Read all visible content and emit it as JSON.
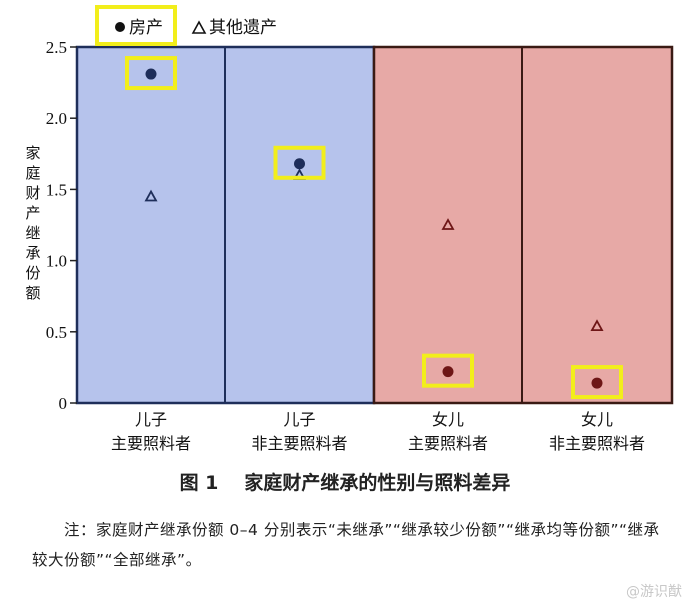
{
  "chart_data": {
    "type": "scatter",
    "ylabel": "家庭财产继承份额",
    "ylim": [
      0,
      2.5
    ],
    "yticks": [
      "0",
      "0.5",
      "1.0",
      "1.5",
      "2.0",
      "2.5"
    ],
    "categories": [
      {
        "line1": "儿子",
        "line2": "主要照料者"
      },
      {
        "line1": "儿子",
        "line2": "非主要照料者"
      },
      {
        "line1": "女儿",
        "line2": "主要照料者"
      },
      {
        "line1": "女儿",
        "line2": "非主要照料者"
      }
    ],
    "series": [
      {
        "name": "房产",
        "marker": "circle",
        "values": [
          2.31,
          1.68,
          0.22,
          0.14
        ]
      },
      {
        "name": "其他遗产",
        "marker": "triangle",
        "values": [
          1.45,
          1.6,
          1.25,
          0.54
        ]
      }
    ],
    "highlighted": {
      "series": "房产",
      "box_color": "#f2ee1b"
    },
    "legend_position": "top-left",
    "colors": {
      "son_panel": "#b6c3ec",
      "son_border": "#1e2e5a",
      "son_marker": "#1e2e5a",
      "daughter_panel": "#e7a9a6",
      "daughter_border": "#3a1a14",
      "daughter_marker": "#6e1616",
      "highlight": "#f2ee1b"
    }
  },
  "figure_caption": {
    "number": "图 1",
    "title": "家庭财产继承的性别与照料差异"
  },
  "note": "注：家庭财产继承份额 0–4 分别表示“未继承”“继承较少份额”“继承均等份额”“继承较大份额”“全部继承”。",
  "watermark": "@游识猷"
}
